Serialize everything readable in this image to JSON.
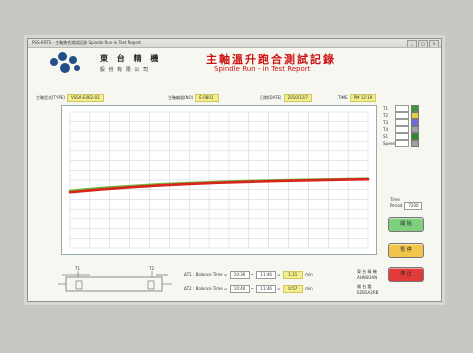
{
  "window": {
    "title": "PSS-RRTS - 主軸跑合測試記錄 Spindle Run-in Test Report",
    "buttons": [
      "_",
      "□",
      "×"
    ]
  },
  "header": {
    "company_name": "東 台 精 機",
    "company_sub": "股 份 有 限 公 司",
    "report_title": "主軸溫升跑合測試記錄",
    "report_subtitle": "Spindle Run - in Test Report"
  },
  "info": {
    "model_label": "主軸型式(TYPE)",
    "model_value": "VSSA-E062-02",
    "serial_label": "主軸編號(NO)",
    "serial_value": "E-0801",
    "date_label": "日期(DATE)",
    "date_value": "2010/12/7",
    "time_label": "TIME",
    "time_value": "PM 12:19"
  },
  "legend": {
    "items": [
      {
        "label": "T1",
        "color": "#3a9a3a"
      },
      {
        "label": "T2",
        "color": "#e0d040"
      },
      {
        "label": "T3",
        "color": "#6a6ad8"
      },
      {
        "label": "T4",
        "color": "#a0a0a0"
      },
      {
        "label": "S1",
        "color": "#2a8a2a"
      },
      {
        "label": "Speed",
        "color": "#a0a0a0"
      }
    ]
  },
  "controls": {
    "btn_green": "開 始",
    "btn_yellow": "暫 停",
    "btn_red": "停 止",
    "time_period_label": "Time",
    "time_period_label2": "Period",
    "time_period_value": "7200"
  },
  "timings": {
    "row1": {
      "label": "ΔT1 : Balance Time =",
      "a": "10:36",
      "b": "11:46",
      "c": "1:21",
      "unit": "min",
      "tag": "東 台 精 機",
      "tag2": "AHNSOAN"
    },
    "row2": {
      "label": "ΔT2 : Balance Time =",
      "a": "10:40",
      "b": "11:46",
      "c": "0:57",
      "unit": "min",
      "tag": "楊 台 鑑",
      "tag2": "EZB5A2RB"
    }
  },
  "diagram_labels": {
    "t1": "T1",
    "t2": "T2"
  },
  "colors": {
    "accent_red": "#cc1111",
    "field_yellow": "#f3ef8c",
    "btn_green": "#7fcf7f",
    "btn_yellow": "#f2c64a",
    "btn_red": "#e23a3a"
  },
  "chart_data": {
    "type": "line",
    "x": [
      0,
      10,
      20,
      30,
      40,
      50,
      60,
      70,
      80,
      90,
      100
    ],
    "series": [
      {
        "values": [
          42,
          44,
          45.5,
          46.8,
          47.8,
          48.6,
          49.3,
          49.8,
          50.2,
          50.6,
          51
        ]
      },
      {
        "values": [
          41,
          43,
          44.6,
          46,
          47.1,
          48,
          48.7,
          49.3,
          49.8,
          50.2,
          50.6
        ]
      }
    ],
    "xlim": [
      0,
      100
    ],
    "ylim": [
      0,
      100
    ],
    "grid": true
  }
}
